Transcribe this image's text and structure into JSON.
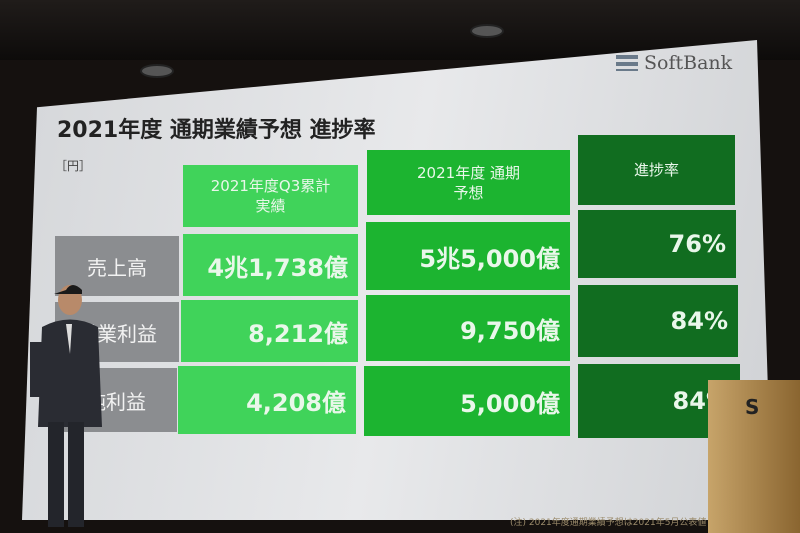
{
  "slide": {
    "title": "2021年度 通期業績予想 進捗率",
    "unit": "［円］",
    "logo": "SoftBank",
    "headers": [
      "2021年度Q3累計\n実績",
      "2021年度 通期\n予想",
      "進捗率"
    ],
    "rows": [
      {
        "label": "売上高",
        "actual": "4兆1,738億",
        "forecast": "5兆5,000億",
        "progress": "76%"
      },
      {
        "label": "営業利益",
        "actual": "8,212億",
        "forecast": "9,750億",
        "progress": "84%"
      },
      {
        "label": "純利益",
        "actual": "4,208億",
        "forecast": "5,000億",
        "progress": "84%"
      }
    ],
    "note": "(注) 2021年度通期業績予想は2021年5月公表値"
  },
  "podium": {
    "logo": "S"
  },
  "colors": {
    "actual": "#40d35a",
    "forecast": "#1cb430",
    "progress": "#116d20",
    "label": "#8b8d90"
  }
}
